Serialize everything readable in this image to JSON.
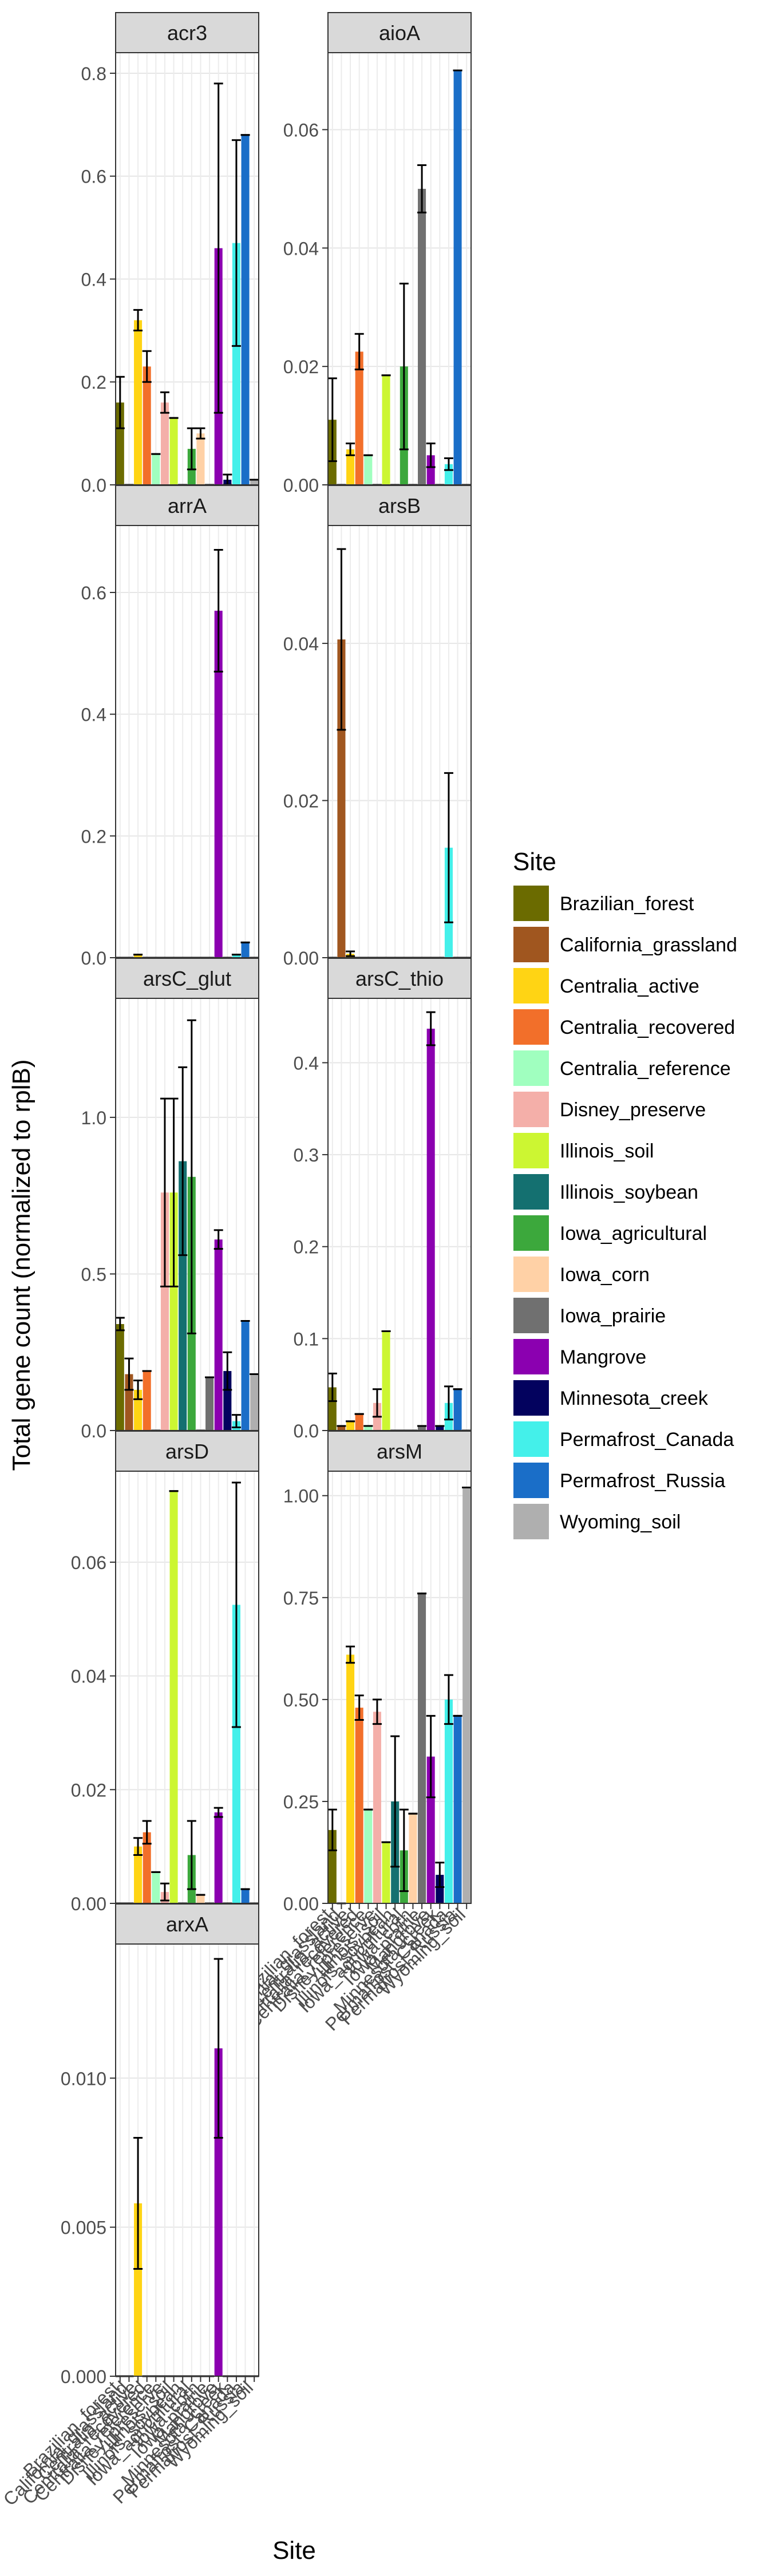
{
  "chart_data": {
    "type": "bar",
    "facet": "wrap",
    "ylabel": "Total gene count (normalized to rplB)",
    "xlabel": "Site",
    "categories": [
      "Brazilian_forest",
      "California_grassland",
      "Centralia_active",
      "Centralia_recovered",
      "Centralia_reference",
      "Disney_preserve",
      "Illinois_soil",
      "Illinois_soybean",
      "Iowa_agricultural",
      "Iowa_corn",
      "Iowa_prairie",
      "Mangrove",
      "Minnesota_creek",
      "Permafrost_Canada",
      "Permafrost_Russia",
      "Wyoming_soil"
    ],
    "legend": {
      "title": "Site",
      "position": "right",
      "colors": [
        "#6B6B00",
        "#A0561F",
        "#FFD414",
        "#F26F2A",
        "#A0FFBF",
        "#F4AFA9",
        "#CCF632",
        "#147070",
        "#3CA83C",
        "#FFD1A6",
        "#707070",
        "#8B00B0",
        "#03025E",
        "#44F0EA",
        "#1A6EC8",
        "#AFAFAF"
      ]
    },
    "grid": true,
    "panels": [
      {
        "title": "acr3",
        "ylim": [
          0,
          0.84
        ],
        "yticks": [
          0,
          0.2,
          0.4,
          0.6,
          0.8
        ],
        "tick_labels": [
          "0.0",
          "0.2",
          "0.4",
          "0.6",
          "0.8"
        ],
        "values": [
          0.16,
          0,
          0.32,
          0.23,
          0.06,
          0.16,
          0.13,
          0,
          0.07,
          0.1,
          0,
          0.46,
          0.01,
          0.47,
          0.68,
          0.01
        ],
        "errors": [
          0.05,
          0,
          0.02,
          0.03,
          0,
          0.02,
          0,
          0,
          0.04,
          0.01,
          0,
          0.32,
          0.01,
          0.2,
          0,
          0
        ]
      },
      {
        "title": "aioA",
        "ylim": [
          0,
          0.073
        ],
        "yticks": [
          0,
          0.02,
          0.04,
          0.06
        ],
        "tick_labels": [
          "0.00",
          "0.02",
          "0.04",
          "0.06"
        ],
        "values": [
          0.011,
          0,
          0.006,
          0.0225,
          0.005,
          0,
          0.0185,
          0,
          0.02,
          0,
          0.05,
          0.005,
          0,
          0.0035,
          0.07,
          0
        ],
        "errors": [
          0.007,
          0,
          0.001,
          0.003,
          0,
          0,
          0,
          0,
          0.014,
          0,
          0.004,
          0.002,
          0,
          0.001,
          0,
          0
        ]
      },
      {
        "title": "arrA",
        "ylim": [
          0,
          0.71
        ],
        "yticks": [
          0,
          0.2,
          0.4,
          0.6
        ],
        "tick_labels": [
          "0.0",
          "0.2",
          "0.4",
          "0.6"
        ],
        "values": [
          0,
          0,
          0.005,
          0,
          0,
          0,
          0,
          0,
          0,
          0,
          0,
          0.57,
          0,
          0.005,
          0.025,
          0
        ],
        "errors": [
          0,
          0,
          0,
          0,
          0,
          0,
          0,
          0,
          0,
          0,
          0,
          0.1,
          0,
          0,
          0,
          0
        ]
      },
      {
        "title": "arsB",
        "ylim": [
          0,
          0.055
        ],
        "yticks": [
          0,
          0.02,
          0.04
        ],
        "tick_labels": [
          "0.00",
          "0.02",
          "0.04"
        ],
        "values": [
          0,
          0.0405,
          0.0005,
          0,
          0,
          0,
          0,
          0,
          0,
          0,
          0,
          0,
          0,
          0.014,
          0,
          0
        ],
        "errors": [
          0,
          0.0115,
          0.0003,
          0,
          0,
          0,
          0,
          0,
          0,
          0,
          0,
          0,
          0,
          0.0095,
          0,
          0
        ]
      },
      {
        "title": "arsC_glut",
        "ylim": [
          0,
          1.38
        ],
        "yticks": [
          0,
          0.5,
          1.0
        ],
        "tick_labels": [
          "0.0",
          "0.5",
          "1.0"
        ],
        "values": [
          0.34,
          0.18,
          0.13,
          0.19,
          0,
          0.76,
          0.76,
          0.86,
          0.81,
          0,
          0.17,
          0.61,
          0.19,
          0.03,
          0.35,
          0.18
        ],
        "errors": [
          0.02,
          0.05,
          0.03,
          0,
          0,
          0.3,
          0.3,
          0.3,
          0.5,
          0,
          0,
          0.03,
          0.06,
          0.02,
          0,
          0
        ]
      },
      {
        "title": "arsC_thio",
        "ylim": [
          0,
          0.47
        ],
        "yticks": [
          0,
          0.1,
          0.2,
          0.3,
          0.4
        ],
        "tick_labels": [
          "0.0",
          "0.1",
          "0.2",
          "0.3",
          "0.4"
        ],
        "values": [
          0.047,
          0.005,
          0.01,
          0.018,
          0.005,
          0.03,
          0.108,
          0,
          0,
          0,
          0.005,
          0.437,
          0.005,
          0.03,
          0.045,
          0
        ],
        "errors": [
          0.015,
          0,
          0,
          0,
          0,
          0.015,
          0,
          0,
          0,
          0,
          0,
          0.018,
          0,
          0.018,
          0,
          0
        ]
      },
      {
        "title": "arsD",
        "ylim": [
          0,
          0.076
        ],
        "yticks": [
          0,
          0.02,
          0.04,
          0.06
        ],
        "tick_labels": [
          "0.00",
          "0.02",
          "0.04",
          "0.06"
        ],
        "values": [
          0,
          0,
          0.01,
          0.0125,
          0.0055,
          0.002,
          0.0725,
          0,
          0.0085,
          0.0015,
          0,
          0.016,
          0,
          0.0525,
          0.0025,
          0
        ],
        "errors": [
          0,
          0,
          0.0015,
          0.002,
          0,
          0.0015,
          0,
          0,
          0.006,
          0,
          0,
          0.0008,
          0,
          0.0215,
          0,
          0
        ]
      },
      {
        "title": "arsM",
        "ylim": [
          0,
          1.06
        ],
        "yticks": [
          0,
          0.25,
          0.5,
          0.75,
          1.0
        ],
        "tick_labels": [
          "0.00",
          "0.25",
          "0.50",
          "0.75",
          "1.00"
        ],
        "values": [
          0.18,
          0,
          0.61,
          0.48,
          0.23,
          0.47,
          0.15,
          0.25,
          0.13,
          0.22,
          0.76,
          0.36,
          0.07,
          0.5,
          0.46,
          1.02
        ],
        "errors": [
          0.05,
          0,
          0.02,
          0.03,
          0,
          0.03,
          0,
          0.16,
          0.1,
          0,
          0,
          0.1,
          0.03,
          0.06,
          0,
          0
        ]
      },
      {
        "title": "arxA",
        "ylim": [
          0,
          0.0145
        ],
        "yticks": [
          0,
          0.005,
          0.01
        ],
        "tick_labels": [
          "0.000",
          "0.005",
          "0.010"
        ],
        "values": [
          0,
          0,
          0.0058,
          0,
          0,
          0,
          0,
          0,
          0,
          0,
          0,
          0.011,
          0,
          0,
          0,
          0
        ],
        "errors": [
          0,
          0,
          0.0022,
          0,
          0,
          0,
          0,
          0,
          0,
          0,
          0,
          0.003,
          0,
          0,
          0,
          0
        ]
      }
    ]
  }
}
